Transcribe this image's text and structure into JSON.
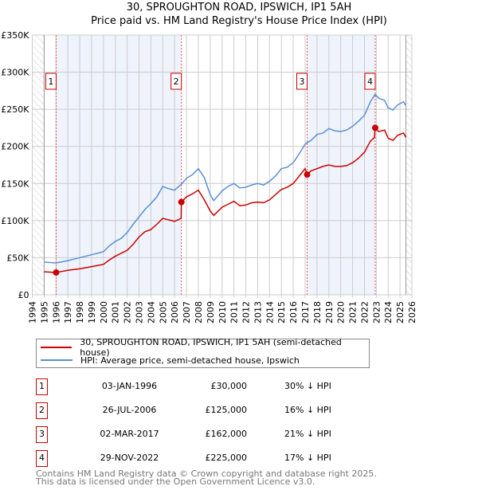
{
  "title": "30, SPROUGHTON ROAD, IPSWICH, IP1 5AH",
  "subtitle": "Price paid vs. HM Land Registry's House Price Index (HPI)",
  "chart_data": {
    "type": "line",
    "title": "30, SPROUGHTON ROAD, IPSWICH, IP1 5AH",
    "ylim": [
      0,
      350000
    ],
    "xlim": [
      1994,
      2026
    ],
    "yticks": [
      0,
      50000,
      100000,
      150000,
      200000,
      250000,
      300000,
      350000
    ],
    "ytick_labels": [
      "£0",
      "£50K",
      "£100K",
      "£150K",
      "£200K",
      "£250K",
      "£300K",
      "£350K"
    ],
    "xticks": [
      "1994",
      "1995",
      "1996",
      "1997",
      "1998",
      "1999",
      "2000",
      "2001",
      "2002",
      "2003",
      "2004",
      "2005",
      "2006",
      "2007",
      "2008",
      "2009",
      "2010",
      "2011",
      "2012",
      "2013",
      "2014",
      "2015",
      "2016",
      "2017",
      "2018",
      "2019",
      "2020",
      "2021",
      "2022",
      "2023",
      "2024",
      "2025",
      "2026"
    ],
    "data_range": [
      1995,
      2025.5
    ],
    "series": [
      {
        "name": "30, SPROUGHTON ROAD, IPSWICH, IP1 5AH (semi-detached house)",
        "color": "#cc0000",
        "x": [
          1995,
          1996,
          1997,
          1998,
          1999,
          2000,
          2000.5,
          2001,
          2002,
          2002.5,
          2003,
          2003.5,
          2004,
          2004.5,
          2005,
          2005.5,
          2006,
          2006.55,
          2006.57,
          2007,
          2007.5,
          2008,
          2008.5,
          2009,
          2009.3,
          2010,
          2010.5,
          2011,
          2011.5,
          2012,
          2012.5,
          2013,
          2013.5,
          2014,
          2014.5,
          2015,
          2015.5,
          2016,
          2016.5,
          2017,
          2017.17,
          2017.5,
          2018,
          2018.5,
          2019,
          2019.5,
          2020,
          2020.5,
          2021,
          2021.5,
          2022,
          2022.5,
          2022.85,
          2022.9,
          2023.2,
          2023.7,
          2024,
          2024.4,
          2024.8,
          2025.3,
          2025.5
        ],
        "y": [
          31000,
          30000,
          33000,
          35000,
          38000,
          41000,
          47000,
          52000,
          60000,
          68000,
          78000,
          85000,
          88000,
          95000,
          103000,
          101000,
          99000,
          103000,
          125000,
          132000,
          136000,
          141000,
          128000,
          113000,
          107000,
          118000,
          122000,
          126000,
          120000,
          121000,
          124000,
          125000,
          124000,
          128000,
          135000,
          142000,
          145000,
          150000,
          160000,
          170000,
          162000,
          167000,
          170000,
          173000,
          175000,
          173000,
          173000,
          174000,
          178000,
          184000,
          192000,
          207000,
          212000,
          225000,
          220000,
          222000,
          211000,
          208000,
          215000,
          218000,
          212000
        ]
      },
      {
        "name": "HPI: Average price, semi-detached house, Ipswich",
        "color": "#5b8fd4",
        "x": [
          1995,
          1996,
          1997,
          1998,
          1999,
          2000,
          2000.5,
          2001,
          2001.5,
          2002,
          2002.5,
          2003,
          2003.5,
          2004,
          2004.5,
          2005,
          2005.5,
          2006,
          2006.57,
          2007,
          2007.5,
          2008,
          2008.5,
          2009,
          2009.3,
          2010,
          2010.5,
          2011,
          2011.5,
          2012,
          2012.5,
          2013,
          2013.5,
          2014,
          2014.5,
          2015,
          2015.5,
          2016,
          2016.5,
          2017,
          2017.17,
          2017.5,
          2018,
          2018.5,
          2019,
          2019.5,
          2020,
          2020.5,
          2021,
          2021.5,
          2022,
          2022.5,
          2022.9,
          2023.2,
          2023.7,
          2024,
          2024.4,
          2024.8,
          2025.3,
          2025.5
        ],
        "y": [
          44000,
          43000,
          46000,
          50000,
          54000,
          58000,
          66000,
          72000,
          76000,
          84000,
          95000,
          105000,
          115000,
          123000,
          132000,
          146000,
          143000,
          141000,
          149000,
          157000,
          162000,
          170000,
          158000,
          135000,
          127000,
          140000,
          146000,
          150000,
          144000,
          145000,
          148000,
          150000,
          148000,
          153000,
          160000,
          170000,
          172000,
          178000,
          190000,
          203000,
          205000,
          208000,
          216000,
          218000,
          224000,
          221000,
          220000,
          222000,
          227000,
          234000,
          242000,
          260000,
          270000,
          265000,
          262000,
          252000,
          249000,
          256000,
          260000,
          255000
        ]
      }
    ],
    "sales": [
      {
        "label": "1",
        "x": 1996.01,
        "price": 30000
      },
      {
        "label": "2",
        "x": 2006.57,
        "price": 125000
      },
      {
        "label": "3",
        "x": 2017.17,
        "price": 162000
      },
      {
        "label": "4",
        "x": 2022.91,
        "price": 225000
      }
    ]
  },
  "legend": [
    "30, SPROUGHTON ROAD, IPSWICH, IP1 5AH (semi-detached house)",
    "HPI: Average price, semi-detached house, Ipswich"
  ],
  "table": [
    {
      "num": "1",
      "date": "03-JAN-1996",
      "price": "£30,000",
      "pct": "30% ↓ HPI"
    },
    {
      "num": "2",
      "date": "26-JUL-2006",
      "price": "£125,000",
      "pct": "16% ↓ HPI"
    },
    {
      "num": "3",
      "date": "02-MAR-2017",
      "price": "£162,000",
      "pct": "21% ↓ HPI"
    },
    {
      "num": "4",
      "date": "29-NOV-2022",
      "price": "£225,000",
      "pct": "17% ↓ HPI"
    }
  ],
  "footer": [
    "Contains HM Land Registry data © Crown copyright and database right 2025.",
    "This data is licensed under the Open Government Licence v3.0."
  ]
}
